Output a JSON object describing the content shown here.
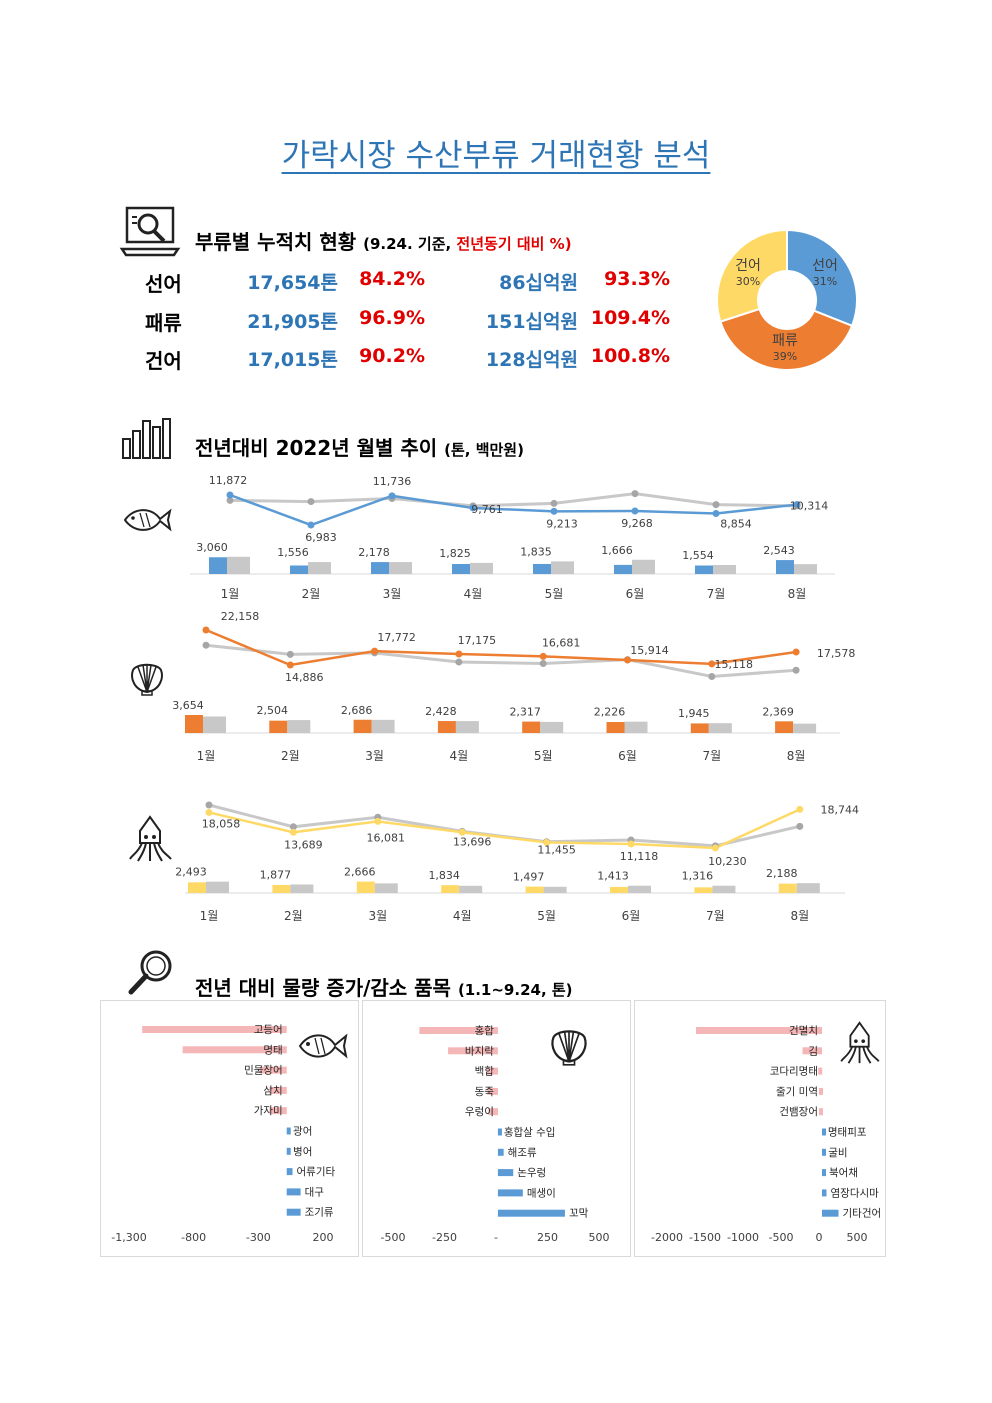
{
  "title": "가락시장 수산부류 거래현황 분석",
  "section1": {
    "heading": "부류별 누적치 현황",
    "note_open": "(9.24. 기준, ",
    "note_red": "전년동기 대비 %)",
    "rows": [
      {
        "label": "선어",
        "volume": "17,654톤",
        "volume_pct": "84.2%",
        "amount": "86십억원",
        "amount_pct": "93.3%"
      },
      {
        "label": "패류",
        "volume": "21,905톤",
        "volume_pct": "96.9%",
        "amount": "151십억원",
        "amount_pct": "109.4%"
      },
      {
        "label": "건어",
        "volume": "17,015톤",
        "volume_pct": "90.2%",
        "amount": "128십억원",
        "amount_pct": "100.8%"
      }
    ]
  },
  "section2": {
    "heading": "전년대비 2022년 월별 추이",
    "unit": "(톤, 백만원)"
  },
  "section3": {
    "heading": "전년 대비 물량 증가/감소 품목",
    "unit": "(1.1~9.24, 톤)"
  },
  "colors": {
    "title_blue": "#2e75b6",
    "red": "#e00000",
    "fish": "#5b9bd5",
    "shell": "#ed7d31",
    "dried": "#ffd966",
    "prev_year_gray": "#c8c8c8",
    "decrease_pink": "#f4b6b6",
    "increase_blue": "#5b9bd5"
  },
  "icons": [
    "laptop-search-icon",
    "bar-chart-icon",
    "fish-icon",
    "shell-icon",
    "squid-icon",
    "magnifier-icon"
  ],
  "chart_data": [
    {
      "type": "pie",
      "name": "share",
      "labels": [
        "선어",
        "패류",
        "건어"
      ],
      "values": [
        31,
        39,
        30
      ],
      "value_labels": [
        "31%",
        "39%",
        "30%"
      ],
      "colors": [
        "#5b9bd5",
        "#ed7d31",
        "#ffd966"
      ]
    },
    {
      "type": "line",
      "name": "fish",
      "categories": [
        "1월",
        "2월",
        "3월",
        "4월",
        "5월",
        "6월",
        "7월",
        "8월"
      ],
      "amount_2022": [
        11872,
        6983,
        11736,
        9761,
        9213,
        9268,
        8854,
        10314
      ],
      "amount_2022_labels": [
        "11,872",
        "6,983",
        "11,736",
        "9,761",
        "9,213",
        "9,268",
        "8,854",
        "10,314"
      ],
      "amount_prev": [
        11000,
        10800,
        11300,
        10100,
        10500,
        12100,
        10300,
        10100
      ],
      "volume_2022": [
        3060,
        1556,
        2178,
        1825,
        1835,
        1666,
        1554,
        2543
      ],
      "volume_2022_labels": [
        "3,060",
        "1,556",
        "2,178",
        "1,825",
        "1,835",
        "1,666",
        "1,554",
        "2,543"
      ],
      "volume_prev": [
        3150,
        2180,
        2180,
        2030,
        2300,
        2600,
        1650,
        1800
      ]
    },
    {
      "type": "line",
      "name": "shellfish",
      "categories": [
        "1월",
        "2월",
        "3월",
        "4월",
        "5월",
        "6월",
        "7월",
        "8월"
      ],
      "amount_2022": [
        22158,
        14886,
        17772,
        17175,
        16681,
        15914,
        15118,
        17578
      ],
      "amount_2022_labels": [
        "22,158",
        "14,886",
        "17,772",
        "17,175",
        "16,681",
        "15,914",
        "15,118",
        "17,578"
      ],
      "amount_prev": [
        19000,
        17100,
        17400,
        15500,
        15200,
        16000,
        12500,
        13800
      ],
      "volume_2022": [
        3654,
        2504,
        2686,
        2428,
        2317,
        2226,
        1945,
        2369
      ],
      "volume_2022_labels": [
        "3,654",
        "2,504",
        "2,686",
        "2,428",
        "2,317",
        "2,226",
        "1,945",
        "2,369"
      ],
      "volume_prev": [
        3350,
        2620,
        2670,
        2420,
        2250,
        2300,
        1990,
        1900
      ]
    },
    {
      "type": "line",
      "name": "dried",
      "categories": [
        "1월",
        "2월",
        "3월",
        "4월",
        "5월",
        "6월",
        "7월",
        "8월"
      ],
      "amount_2022": [
        18058,
        13689,
        16081,
        13696,
        11455,
        11118,
        10230,
        18744
      ],
      "amount_2022_labels": [
        "18,058",
        "13,689",
        "16,081",
        "13,696",
        "11,455",
        "11,118",
        "10,230",
        "18,744"
      ],
      "amount_prev": [
        19700,
        14900,
        17000,
        13900,
        11600,
        12000,
        10700,
        15000
      ],
      "volume_2022": [
        2493,
        1877,
        2666,
        1834,
        1497,
        1413,
        1316,
        2188
      ],
      "volume_2022_labels": [
        "2,493",
        "1,877",
        "2,666",
        "1,834",
        "1,497",
        "1,413",
        "1,316",
        "2,188"
      ],
      "volume_prev": [
        2650,
        1990,
        2250,
        1680,
        1450,
        1700,
        1700,
        2300
      ]
    },
    {
      "type": "bar",
      "name": "fish-change",
      "categories": [
        "고등어",
        "명태",
        "민물장어",
        "삼치",
        "가자미",
        "광어",
        "병어",
        "어류기타",
        "대구",
        "조기류"
      ],
      "values": [
        -1250,
        -900,
        -230,
        -150,
        -150,
        20,
        20,
        50,
        120,
        120
      ],
      "ticks": [
        "-1,300",
        "-800",
        "-300",
        "200"
      ],
      "xlim": [
        -1450,
        400
      ]
    },
    {
      "type": "bar",
      "name": "shellfish-change",
      "categories": [
        "홍합",
        "바지락",
        "백합",
        "동죽",
        "우렁이",
        "홍합살 수입",
        "해조류",
        "논우렁",
        "매생이",
        "꼬막"
      ],
      "values": [
        -410,
        -260,
        -60,
        -55,
        -50,
        10,
        30,
        80,
        130,
        350
      ],
      "ticks": [
        "-500",
        "-250",
        "-",
        "250",
        "500"
      ],
      "xlim": [
        -600,
        580
      ]
    },
    {
      "type": "bar",
      "name": "dried-change",
      "categories": [
        "건멸치",
        "김",
        "코다리명태",
        "줄기 미역",
        "건뱀장어",
        "명태피포",
        "굴비",
        "북어채",
        "염장다시마",
        "기타건어"
      ],
      "values": [
        -1680,
        -260,
        -50,
        -40,
        -40,
        25,
        30,
        40,
        60,
        220
      ],
      "ticks": [
        "-2000",
        "-1500",
        "-1000",
        "-500",
        "0",
        "500"
      ],
      "xlim": [
        -2200,
        600
      ]
    }
  ]
}
